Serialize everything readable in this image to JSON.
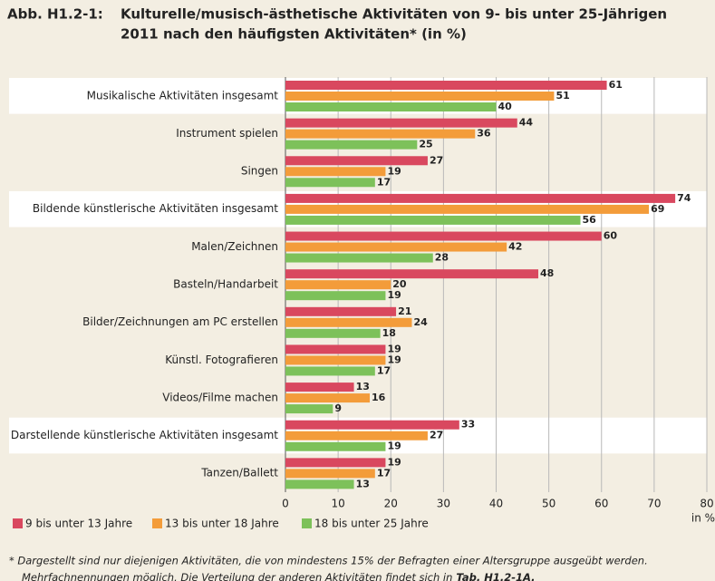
{
  "chart_data": {
    "type": "hbar",
    "figure_label": "Abb. H1.2-1:",
    "title": [
      "Kulturelle/musisch-ästhetische Aktivitäten von 9- bis unter 25-Jährigen",
      "2011 nach den häufigsten Aktivitäten* (in %)"
    ],
    "categories": [
      "Musikalische Aktivitäten insgesamt",
      "Instrument spielen",
      "Singen",
      "Bildende künstlerische Aktivitäten insgesamt",
      "Malen/Zeichnen",
      "Basteln/Handarbeit",
      "Bilder/Zeichnungen am PC erstellen",
      "Künstl. Fotografieren",
      "Videos/Filme machen",
      "Darstellende künstlerische Aktivitäten insgesamt",
      "Tanzen/Ballett"
    ],
    "highlight_rows": [
      0,
      3,
      9
    ],
    "series": [
      {
        "name": "9 bis unter 13 Jahre",
        "color": "#d9485f",
        "values": [
          61,
          44,
          27,
          74,
          60,
          48,
          21,
          19,
          13,
          33,
          19
        ]
      },
      {
        "name": "13 bis unter 18 Jahre",
        "color": "#f39c3a",
        "values": [
          51,
          36,
          19,
          69,
          42,
          20,
          24,
          19,
          16,
          27,
          17
        ]
      },
      {
        "name": "18 bis unter 25 Jahre",
        "color": "#7dc15a",
        "values": [
          40,
          25,
          17,
          56,
          28,
          19,
          18,
          17,
          9,
          19,
          13
        ]
      }
    ],
    "xlim": [
      0,
      80
    ],
    "xticks": [
      0,
      10,
      20,
      30,
      40,
      50,
      60,
      70,
      80
    ],
    "xlabel": "in %",
    "grid": true,
    "footnote": [
      "*  Dargestellt sind nur diejenigen Aktivitäten, die von mindestens 15% der Befragten einer Altersgruppe ausgeübt werden.",
      "Mehrfachnennungen möglich. Die Verteilung der anderen Aktivitäten findet sich in",
      "Tab. H1.2-1A."
    ]
  }
}
